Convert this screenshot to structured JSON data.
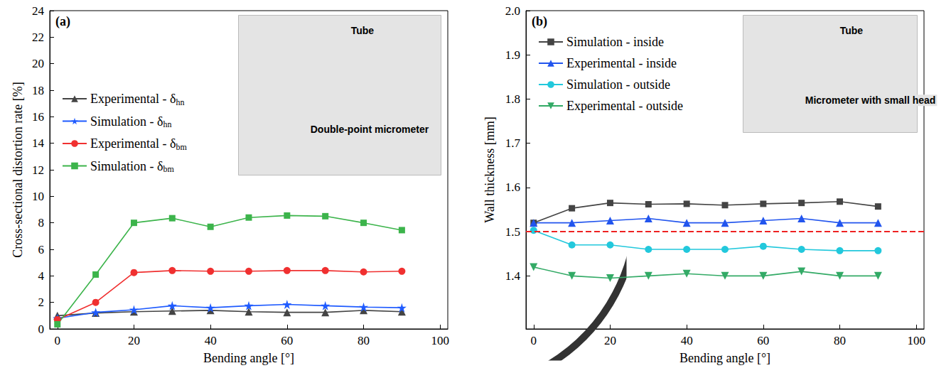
{
  "chart_data": [
    {
      "type": "line",
      "panel_label": "(a)",
      "x_label": "Bending angle [°]",
      "y_label": "Cross-sectional distortion rate [%]",
      "x": [
        0,
        10,
        20,
        30,
        40,
        50,
        60,
        70,
        80,
        90
      ],
      "xlim": [
        -2,
        102
      ],
      "xticks": [
        0,
        20,
        40,
        60,
        80,
        100
      ],
      "ylim": [
        0,
        24
      ],
      "yticks": [
        0,
        2,
        4,
        6,
        8,
        10,
        12,
        14,
        16,
        18,
        20,
        22,
        24
      ],
      "grid": false,
      "legend": "upper left",
      "photo_labels": [
        "Tube",
        "Double-point micrometer"
      ],
      "series": [
        {
          "name": "Experimental - δhn",
          "color": "#444444",
          "marker": "triangle",
          "line_style": "solid",
          "values": [
            1.0,
            1.2,
            1.3,
            1.35,
            1.4,
            1.3,
            1.25,
            1.25,
            1.4,
            1.3
          ]
        },
        {
          "name": "Simulation - δhn",
          "color": "#1f5bff",
          "marker": "star",
          "line_style": "solid",
          "values": [
            0.8,
            1.25,
            1.45,
            1.75,
            1.6,
            1.75,
            1.85,
            1.75,
            1.65,
            1.6
          ]
        },
        {
          "name": "Experimental - δbm",
          "color": "#f03030",
          "marker": "circle",
          "line_style": "solid",
          "values": [
            0.7,
            2.0,
            4.25,
            4.4,
            4.35,
            4.35,
            4.4,
            4.4,
            4.3,
            4.35
          ]
        },
        {
          "name": "Simulation - δbm",
          "color": "#3cb44b",
          "marker": "square",
          "line_style": "solid",
          "values": [
            0.35,
            4.1,
            8.0,
            8.35,
            7.7,
            8.4,
            8.55,
            8.5,
            8.0,
            7.45
          ]
        }
      ]
    },
    {
      "type": "line",
      "panel_label": "(b)",
      "x_label": "Bending angle [°]",
      "y_label": "Wall thickness [mm]",
      "x": [
        0,
        10,
        20,
        30,
        40,
        50,
        60,
        70,
        80,
        90
      ],
      "xlim": [
        -2,
        102
      ],
      "xticks": [
        0,
        20,
        40,
        60,
        80,
        100
      ],
      "ylim": [
        1.28,
        2.0
      ],
      "yticks": [
        1.4,
        {
          "value": 1.5,
          "label": "1.5"
        },
        1.6,
        1.7,
        1.8,
        1.9,
        {
          "value": 2.0,
          "label": "2.0"
        }
      ],
      "grid": false,
      "legend": "upper left",
      "photo_labels": [
        "Tube",
        "Micrometer with small head"
      ],
      "reference_lines": [
        {
          "y": 1.5,
          "color": "#ee2222",
          "line_style": "dashed"
        }
      ],
      "series": [
        {
          "name": "Simulation - inside",
          "color": "#444444",
          "marker": "square",
          "line_style": "solid",
          "values": [
            1.52,
            1.553,
            1.565,
            1.562,
            1.563,
            1.56,
            1.563,
            1.565,
            1.568,
            1.557
          ]
        },
        {
          "name": "Experimental - inside",
          "color": "#2255ee",
          "marker": "triangle",
          "line_style": "solid",
          "values": [
            1.52,
            1.52,
            1.525,
            1.53,
            1.52,
            1.52,
            1.525,
            1.53,
            1.52,
            1.52
          ]
        },
        {
          "name": "Simulation - outside",
          "color": "#22c8dc",
          "marker": "circle",
          "line_style": "solid",
          "values": [
            1.503,
            1.47,
            1.47,
            1.46,
            1.46,
            1.46,
            1.467,
            1.46,
            1.457,
            1.457
          ]
        },
        {
          "name": "Experimental - outside",
          "color": "#33aa66",
          "marker": "triangle_down",
          "line_style": "solid",
          "values": [
            1.42,
            1.4,
            1.395,
            1.4,
            1.405,
            1.4,
            1.4,
            1.41,
            1.4,
            1.4
          ]
        }
      ]
    }
  ]
}
